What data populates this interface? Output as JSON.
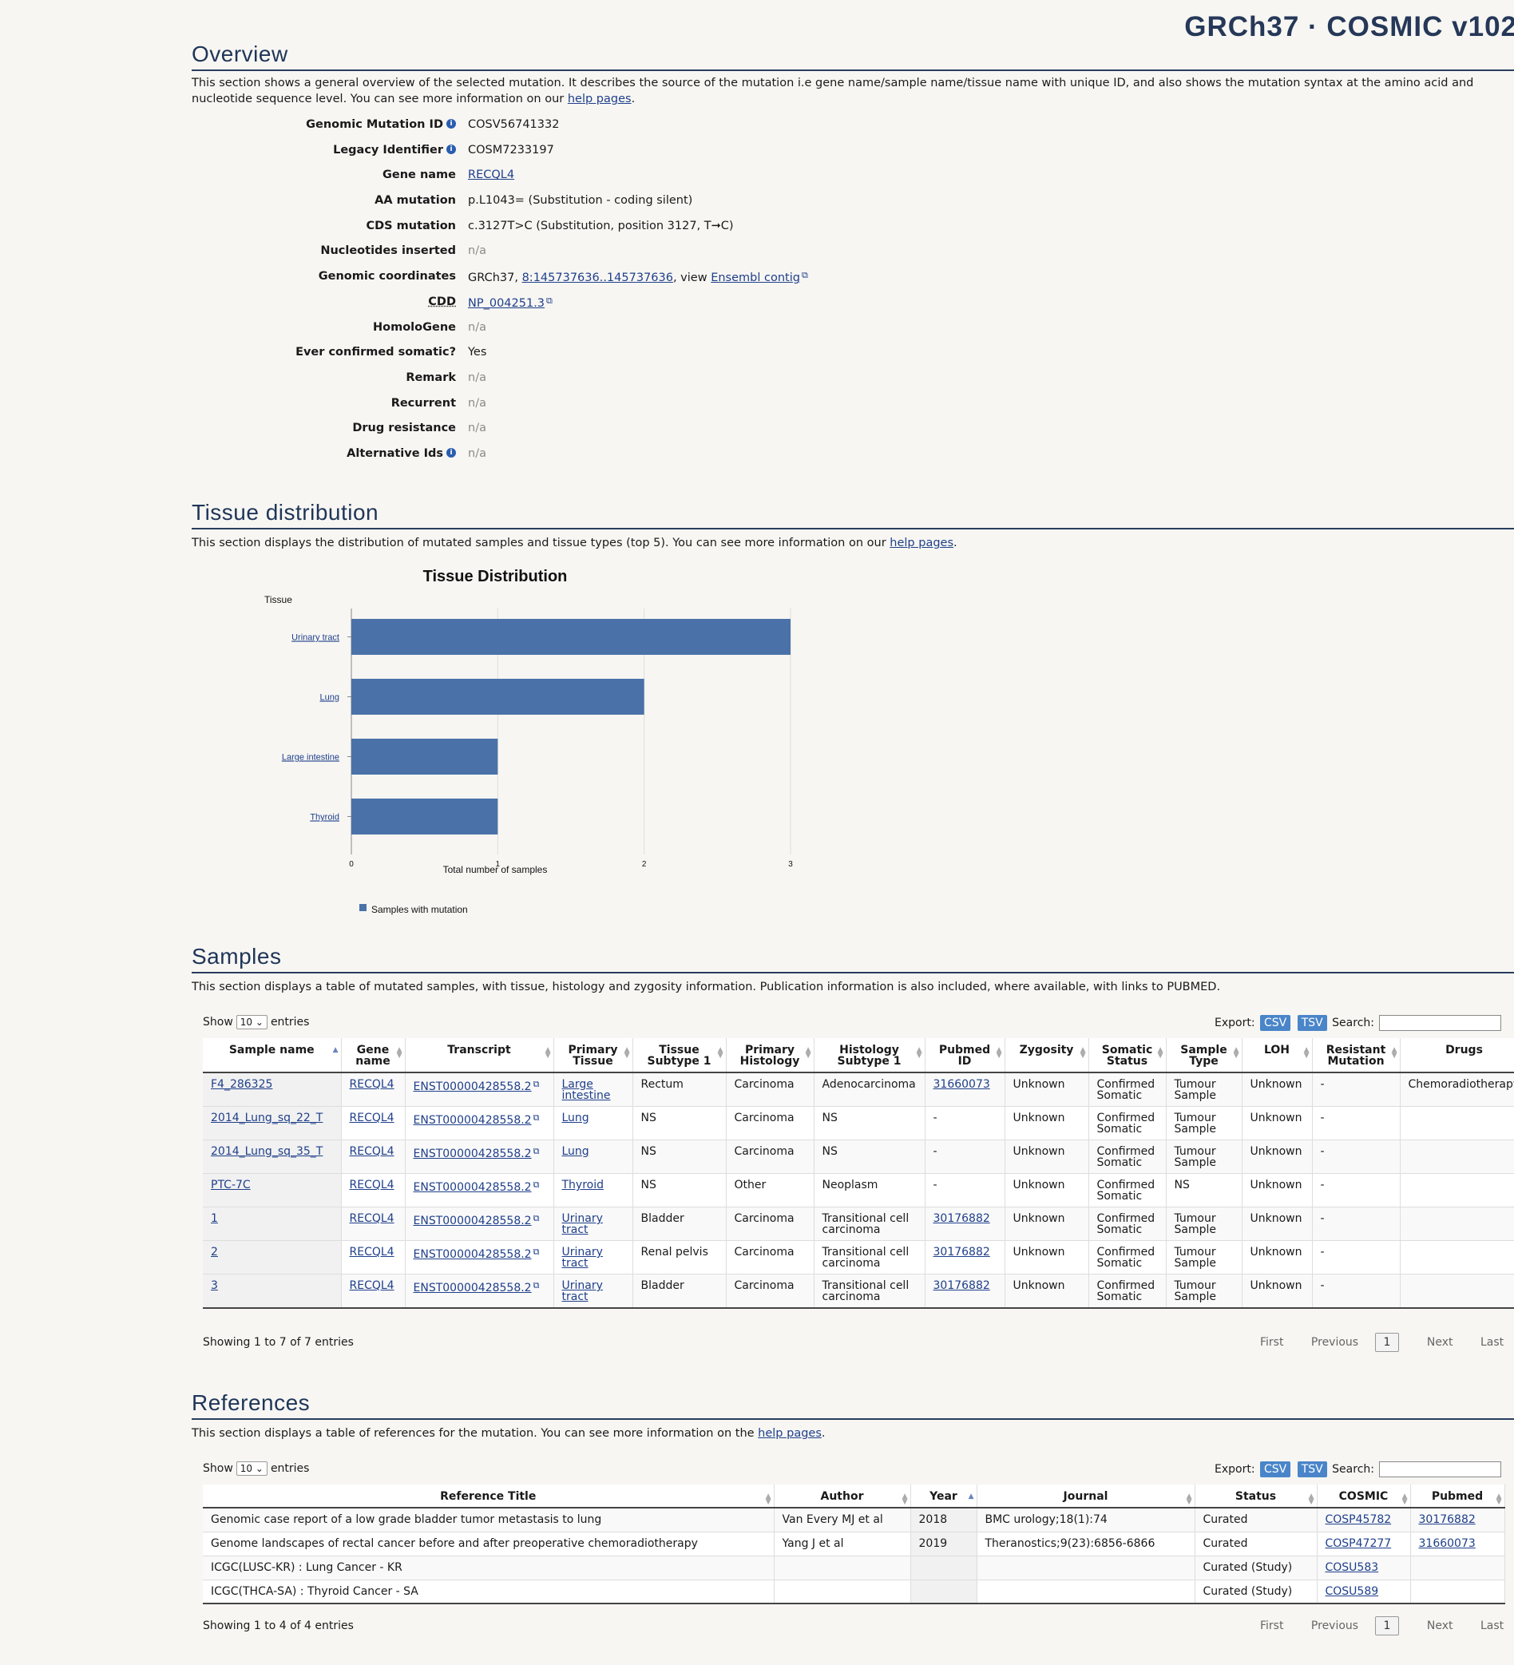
{
  "header": {
    "build": "GRCh37 · COSMIC v102"
  },
  "overview": {
    "title": "Overview",
    "desc_text": "This section shows a general overview of the selected mutation. It describes the source of the mutation i.e gene name/sample name/tissue name with unique ID, and also shows the mutation syntax at the amino acid and nucleotide sequence level. You can see more information on our ",
    "help_link": "help pages",
    "desc_end": ".",
    "fields": [
      {
        "label": "Genomic Mutation ID",
        "info": true,
        "value": "COSV56741332"
      },
      {
        "label": "Legacy Identifier",
        "info": true,
        "value": "COSM7233197"
      },
      {
        "label": "Gene name",
        "value": "RECQL4",
        "link": true
      },
      {
        "label": "AA mutation",
        "value": "p.L1043= (Substitution - coding silent)"
      },
      {
        "label": "CDS mutation",
        "value": "c.3127T>C (Substitution, position 3127, T➞C)"
      },
      {
        "label": "Nucleotides inserted",
        "value": "n/a",
        "na": true
      },
      {
        "label": "Genomic coordinates",
        "value": "GRCh37, ",
        "coord_link": "8:145737636..145737636",
        "mid": ", view ",
        "contig_link": "Ensembl contig"
      },
      {
        "label": "CDD",
        "value": "NP_004251.3",
        "link": true,
        "ext": true
      },
      {
        "label": "HomoloGene",
        "value": "n/a",
        "na": true
      },
      {
        "label": "Ever confirmed somatic?",
        "value": "Yes"
      },
      {
        "label": "Remark",
        "value": "n/a",
        "na": true
      },
      {
        "label": "Recurrent",
        "value": "n/a",
        "na": true
      },
      {
        "label": "Drug resistance",
        "value": "n/a",
        "na": true
      },
      {
        "label": "Alternative Ids",
        "info": true,
        "value": "n/a",
        "na": true
      }
    ]
  },
  "tissue": {
    "title": "Tissue distribution",
    "desc_text": "This section displays the distribution of mutated samples and tissue types (top 5). You can see more information on our ",
    "help_link": "help pages",
    "desc_end": "."
  },
  "chart_data": {
    "type": "bar",
    "orientation": "horizontal",
    "title": "Tissue Distribution",
    "ylabel": "Tissue",
    "xlabel": "Total number of samples",
    "categories": [
      "Urinary tract",
      "Lung",
      "Large intestine",
      "Thyroid"
    ],
    "series": [
      {
        "name": "Samples with mutation",
        "values": [
          3,
          2,
          1,
          1
        ],
        "color": "#4a72a8"
      }
    ],
    "xlim": [
      0,
      3
    ],
    "xticks": [
      "0",
      "1",
      "2",
      "3"
    ],
    "grid": true,
    "legend": "bottom-left"
  },
  "samples": {
    "title": "Samples",
    "desc": "This section displays a table of mutated samples, with tissue, histology and zygosity information. Publication information is also included, where available, with links to PUBMED.",
    "show": "Show",
    "entries_val": "10",
    "entries": "entries",
    "export": "Export:",
    "csv": "CSV",
    "tsv": "TSV",
    "search": "Search:",
    "columns": [
      "Sample name",
      "Gene name",
      "Transcript",
      "Primary Tissue",
      "Tissue Subtype 1",
      "Primary Histology",
      "Histology Subtype 1",
      "Pubmed ID",
      "Zygosity",
      "Somatic Status",
      "Sample Type",
      "LOH",
      "Resistant Mutation",
      "Drugs"
    ],
    "rows": [
      [
        "F4_286325",
        "RECQL4",
        "ENST00000428558.2",
        "Large intestine",
        "Rectum",
        "Carcinoma",
        "Adenocarcinoma",
        "31660073",
        "Unknown",
        "Confirmed Somatic",
        "Tumour Sample",
        "Unknown",
        "-",
        "Chemoradiotherapy"
      ],
      [
        "2014_Lung_sq_22_T",
        "RECQL4",
        "ENST00000428558.2",
        "Lung",
        "NS",
        "Carcinoma",
        "NS",
        "-",
        "Unknown",
        "Confirmed Somatic",
        "Tumour Sample",
        "Unknown",
        "-",
        ""
      ],
      [
        "2014_Lung_sq_35_T",
        "RECQL4",
        "ENST00000428558.2",
        "Lung",
        "NS",
        "Carcinoma",
        "NS",
        "-",
        "Unknown",
        "Confirmed Somatic",
        "Tumour Sample",
        "Unknown",
        "-",
        ""
      ],
      [
        "PTC-7C",
        "RECQL4",
        "ENST00000428558.2",
        "Thyroid",
        "NS",
        "Other",
        "Neoplasm",
        "-",
        "Unknown",
        "Confirmed Somatic",
        "NS",
        "Unknown",
        "-",
        ""
      ],
      [
        "1",
        "RECQL4",
        "ENST00000428558.2",
        "Urinary tract",
        "Bladder",
        "Carcinoma",
        "Transitional cell carcinoma",
        "30176882",
        "Unknown",
        "Confirmed Somatic",
        "Tumour Sample",
        "Unknown",
        "-",
        ""
      ],
      [
        "2",
        "RECQL4",
        "ENST00000428558.2",
        "Urinary tract",
        "Renal pelvis",
        "Carcinoma",
        "Transitional cell carcinoma",
        "30176882",
        "Unknown",
        "Confirmed Somatic",
        "Tumour Sample",
        "Unknown",
        "-",
        ""
      ],
      [
        "3",
        "RECQL4",
        "ENST00000428558.2",
        "Urinary tract",
        "Bladder",
        "Carcinoma",
        "Transitional cell carcinoma",
        "30176882",
        "Unknown",
        "Confirmed Somatic",
        "Tumour Sample",
        "Unknown",
        "-",
        ""
      ]
    ],
    "info": "Showing 1 to 7 of 7 entries",
    "pager": {
      "first": "First",
      "prev": "Previous",
      "page": "1",
      "next": "Next",
      "last": "Last"
    }
  },
  "references": {
    "title": "References",
    "desc_text": "This section displays a table of references for the mutation. You can see more information on the ",
    "help_link": "help pages",
    "desc_end": ".",
    "show": "Show",
    "entries_val": "10",
    "entries": "entries",
    "export": "Export:",
    "csv": "CSV",
    "tsv": "TSV",
    "search": "Search:",
    "columns": [
      "Reference Title",
      "Author",
      "Year",
      "Journal",
      "Status",
      "COSMIC",
      "Pubmed"
    ],
    "rows": [
      [
        "Genomic case report of a low grade bladder tumor metastasis to lung",
        "Van Every MJ et al",
        "2018",
        "BMC urology;18(1):74",
        "Curated",
        "COSP45782",
        "30176882"
      ],
      [
        "Genome landscapes of rectal cancer before and after preoperative chemoradiotherapy",
        "Yang J et al",
        "2019",
        "Theranostics;9(23):6856-6866",
        "Curated",
        "COSP47277",
        "31660073"
      ],
      [
        "ICGC(LUSC-KR) : Lung Cancer - KR",
        "",
        "",
        "",
        "Curated (Study)",
        "COSU583",
        ""
      ],
      [
        "ICGC(THCA-SA) : Thyroid Cancer - SA",
        "",
        "",
        "",
        "Curated (Study)",
        "COSU589",
        ""
      ]
    ],
    "info": "Showing 1 to 4 of 4 entries",
    "pager": {
      "first": "First",
      "prev": "Previous",
      "page": "1",
      "next": "Next",
      "last": "Last"
    }
  }
}
